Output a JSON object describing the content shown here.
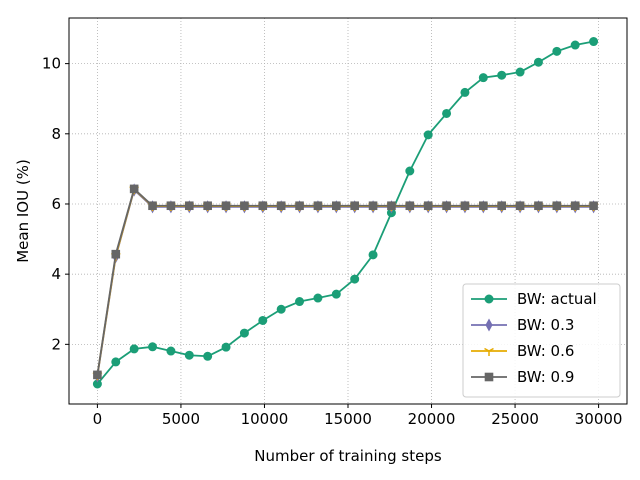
{
  "chart_data": {
    "type": "line",
    "title": "",
    "xlabel": "Number of training steps",
    "ylabel": "Mean IOU (%)",
    "xlim": [
      -1700,
      31700
    ],
    "ylim": [
      0.3,
      11.3
    ],
    "xticks": [
      0,
      5000,
      10000,
      15000,
      20000,
      25000,
      30000
    ],
    "yticks": [
      2,
      4,
      6,
      8,
      10
    ],
    "grid": true,
    "legend_position": "lower-right",
    "x": [
      0,
      1100,
      2200,
      3300,
      4400,
      5500,
      6600,
      7700,
      8800,
      9900,
      11000,
      12100,
      13200,
      14300,
      15400,
      16500,
      17600,
      18700,
      19800,
      20900,
      22000,
      23100,
      24200,
      25300,
      26400,
      27500,
      28600,
      29700
    ],
    "series": [
      {
        "name": "BW: actual",
        "color": "#1b9e77",
        "marker": "circle",
        "values": [
          0.87,
          1.5,
          1.87,
          1.93,
          1.81,
          1.69,
          1.66,
          1.92,
          2.32,
          2.68,
          3.0,
          3.22,
          3.32,
          3.43,
          3.86,
          4.55,
          5.75,
          6.94,
          7.97,
          8.58,
          9.18,
          9.6,
          9.67,
          9.76,
          10.04,
          10.35,
          10.53,
          10.63
        ]
      },
      {
        "name": "BW: 0.3",
        "color": "#7570b3",
        "marker": "thin_diamond",
        "values": [
          1.1,
          4.5,
          6.4,
          5.92,
          5.92,
          5.92,
          5.92,
          5.92,
          5.92,
          5.92,
          5.92,
          5.92,
          5.92,
          5.92,
          5.92,
          5.92,
          5.92,
          5.92,
          5.92,
          5.92,
          5.92,
          5.92,
          5.92,
          5.92,
          5.92,
          5.92,
          5.92,
          5.92
        ]
      },
      {
        "name": "BW: 0.6",
        "color": "#e6ab02",
        "marker": "tri_down",
        "values": [
          1.12,
          4.52,
          6.42,
          5.94,
          5.94,
          5.94,
          5.94,
          5.94,
          5.94,
          5.94,
          5.94,
          5.94,
          5.94,
          5.94,
          5.94,
          5.94,
          5.94,
          5.94,
          5.94,
          5.94,
          5.94,
          5.94,
          5.94,
          5.94,
          5.94,
          5.94,
          5.94,
          5.94
        ]
      },
      {
        "name": "BW: 0.9",
        "color": "#666666",
        "marker": "square",
        "values": [
          1.13,
          4.57,
          6.43,
          5.95,
          5.95,
          5.95,
          5.95,
          5.95,
          5.95,
          5.95,
          5.95,
          5.95,
          5.95,
          5.95,
          5.95,
          5.95,
          5.95,
          5.95,
          5.95,
          5.95,
          5.95,
          5.95,
          5.95,
          5.95,
          5.95,
          5.95,
          5.95,
          5.95
        ]
      }
    ]
  }
}
